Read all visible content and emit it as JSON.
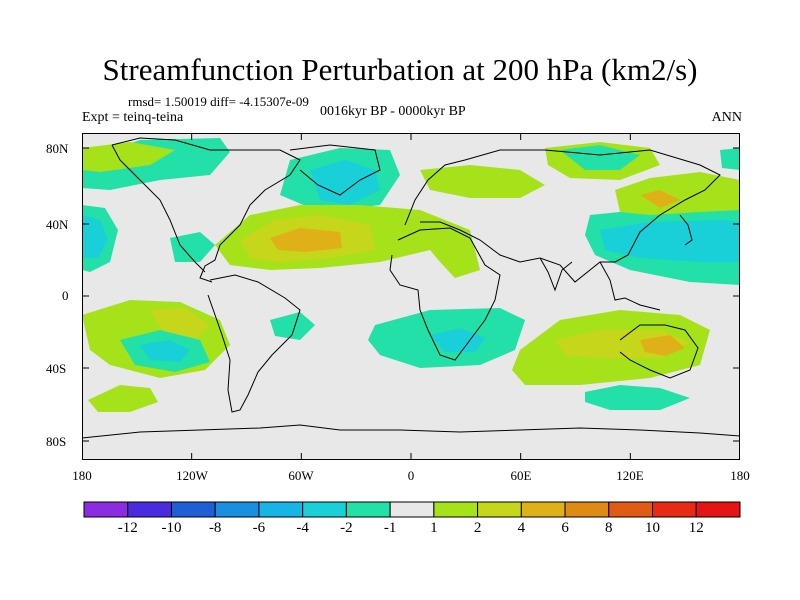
{
  "title": "Streamfunction Perturbation at 200 hPa (km2/s)",
  "stats": "rmsd= 1.50019 diff= -4.15307e-09",
  "experiment": "Expt = teinq-teina",
  "period": "0016kyr BP - 0000kyr BP",
  "season": "ANN",
  "lat_labels": [
    "80N",
    "40N",
    "0",
    "40S",
    "80S"
  ],
  "lon_labels": [
    "180",
    "120W",
    "60W",
    "0",
    "60E",
    "120E",
    "180"
  ],
  "colorbar": {
    "labels": [
      "-12",
      "-10",
      "-8",
      "-6",
      "-4",
      "-2",
      "-1",
      "1",
      "2",
      "4",
      "6",
      "8",
      "10",
      "12"
    ],
    "colors": [
      "#8b2be2",
      "#4a2be0",
      "#1f5fd6",
      "#1a8ee0",
      "#17b4e6",
      "#19cfd8",
      "#22e0a8",
      "#e8e8e8",
      "#a6e21a",
      "#c6d61a",
      "#e0b018",
      "#e08a16",
      "#e05c14",
      "#e82a14",
      "#e61414"
    ]
  },
  "fills": [
    {
      "c": "#22e0a8",
      "pts": [
        [
          82,
          160
        ],
        [
          140,
          140
        ],
        [
          220,
          138
        ],
        [
          230,
          152
        ],
        [
          210,
          175
        ],
        [
          160,
          180
        ],
        [
          110,
          190
        ],
        [
          82,
          188
        ]
      ]
    },
    {
      "c": "#a6e21a",
      "pts": [
        [
          82,
          148
        ],
        [
          130,
          142
        ],
        [
          175,
          150
        ],
        [
          150,
          165
        ],
        [
          100,
          172
        ],
        [
          82,
          170
        ]
      ]
    },
    {
      "c": "#22e0a8",
      "pts": [
        [
          290,
          160
        ],
        [
          340,
          148
        ],
        [
          390,
          150
        ],
        [
          400,
          175
        ],
        [
          380,
          205
        ],
        [
          320,
          212
        ],
        [
          280,
          195
        ]
      ]
    },
    {
      "c": "#19cfd8",
      "pts": [
        [
          310,
          170
        ],
        [
          345,
          160
        ],
        [
          375,
          170
        ],
        [
          380,
          190
        ],
        [
          350,
          205
        ],
        [
          320,
          200
        ]
      ]
    },
    {
      "c": "#22e0a8",
      "pts": [
        [
          82,
          205
        ],
        [
          105,
          208
        ],
        [
          118,
          230
        ],
        [
          110,
          262
        ],
        [
          90,
          272
        ],
        [
          82,
          270
        ]
      ]
    },
    {
      "c": "#19cfd8",
      "pts": [
        [
          82,
          215
        ],
        [
          100,
          220
        ],
        [
          108,
          240
        ],
        [
          98,
          258
        ],
        [
          82,
          258
        ]
      ]
    },
    {
      "c": "#22e0a8",
      "pts": [
        [
          170,
          238
        ],
        [
          200,
          232
        ],
        [
          215,
          245
        ],
        [
          200,
          262
        ],
        [
          175,
          262
        ]
      ]
    },
    {
      "c": "#a6e21a",
      "pts": [
        [
          215,
          245
        ],
        [
          250,
          215
        ],
        [
          300,
          205
        ],
        [
          360,
          205
        ],
        [
          420,
          210
        ],
        [
          470,
          230
        ],
        [
          480,
          270
        ],
        [
          455,
          278
        ],
        [
          440,
          262
        ],
        [
          430,
          250
        ],
        [
          380,
          262
        ],
        [
          320,
          268
        ],
        [
          270,
          270
        ],
        [
          230,
          265
        ]
      ]
    },
    {
      "c": "#c6d61a",
      "pts": [
        [
          240,
          240
        ],
        [
          275,
          220
        ],
        [
          320,
          215
        ],
        [
          370,
          225
        ],
        [
          375,
          250
        ],
        [
          330,
          258
        ],
        [
          280,
          262
        ],
        [
          250,
          258
        ]
      ]
    },
    {
      "c": "#e0b018",
      "pts": [
        [
          270,
          238
        ],
        [
          300,
          228
        ],
        [
          340,
          232
        ],
        [
          342,
          248
        ],
        [
          305,
          252
        ],
        [
          278,
          250
        ]
      ]
    },
    {
      "c": "#a6e21a",
      "pts": [
        [
          420,
          170
        ],
        [
          470,
          165
        ],
        [
          520,
          170
        ],
        [
          545,
          185
        ],
        [
          520,
          198
        ],
        [
          470,
          198
        ],
        [
          430,
          190
        ]
      ]
    },
    {
      "c": "#a6e21a",
      "pts": [
        [
          545,
          148
        ],
        [
          600,
          142
        ],
        [
          650,
          148
        ],
        [
          660,
          165
        ],
        [
          620,
          180
        ],
        [
          570,
          178
        ],
        [
          548,
          165
        ]
      ]
    },
    {
      "c": "#22e0a8",
      "pts": [
        [
          560,
          150
        ],
        [
          600,
          145
        ],
        [
          640,
          155
        ],
        [
          620,
          170
        ],
        [
          585,
          170
        ]
      ]
    },
    {
      "c": "#22e0a8",
      "pts": [
        [
          590,
          215
        ],
        [
          640,
          210
        ],
        [
          700,
          205
        ],
        [
          740,
          205
        ],
        [
          740,
          285
        ],
        [
          690,
          282
        ],
        [
          630,
          270
        ],
        [
          595,
          255
        ],
        [
          585,
          235
        ]
      ]
    },
    {
      "c": "#19cfd8",
      "pts": [
        [
          600,
          230
        ],
        [
          650,
          222
        ],
        [
          720,
          220
        ],
        [
          740,
          222
        ],
        [
          740,
          262
        ],
        [
          700,
          262
        ],
        [
          640,
          258
        ],
        [
          605,
          250
        ]
      ]
    },
    {
      "c": "#a6e21a",
      "pts": [
        [
          615,
          190
        ],
        [
          650,
          178
        ],
        [
          700,
          172
        ],
        [
          740,
          180
        ],
        [
          740,
          210
        ],
        [
          700,
          212
        ],
        [
          650,
          215
        ],
        [
          620,
          212
        ]
      ]
    },
    {
      "c": "#e0b018",
      "pts": [
        [
          640,
          195
        ],
        [
          660,
          190
        ],
        [
          680,
          200
        ],
        [
          660,
          208
        ]
      ]
    },
    {
      "c": "#a6e21a",
      "pts": [
        [
          82,
          315
        ],
        [
          130,
          300
        ],
        [
          180,
          302
        ],
        [
          220,
          320
        ],
        [
          230,
          345
        ],
        [
          205,
          370
        ],
        [
          160,
          378
        ],
        [
          110,
          365
        ],
        [
          90,
          350
        ]
      ]
    },
    {
      "c": "#c6d61a",
      "pts": [
        [
          150,
          310
        ],
        [
          185,
          308
        ],
        [
          210,
          325
        ],
        [
          195,
          340
        ],
        [
          165,
          335
        ]
      ]
    },
    {
      "c": "#22e0a8",
      "pts": [
        [
          120,
          340
        ],
        [
          160,
          330
        ],
        [
          200,
          340
        ],
        [
          210,
          362
        ],
        [
          175,
          372
        ],
        [
          135,
          365
        ]
      ]
    },
    {
      "c": "#19cfd8",
      "pts": [
        [
          140,
          345
        ],
        [
          170,
          340
        ],
        [
          190,
          350
        ],
        [
          180,
          362
        ],
        [
          150,
          360
        ]
      ]
    },
    {
      "c": "#22e0a8",
      "pts": [
        [
          270,
          320
        ],
        [
          300,
          312
        ],
        [
          315,
          325
        ],
        [
          300,
          340
        ],
        [
          275,
          336
        ]
      ]
    },
    {
      "c": "#22e0a8",
      "pts": [
        [
          375,
          325
        ],
        [
          430,
          310
        ],
        [
          500,
          308
        ],
        [
          525,
          320
        ],
        [
          515,
          350
        ],
        [
          480,
          365
        ],
        [
          420,
          368
        ],
        [
          380,
          355
        ],
        [
          368,
          340
        ]
      ]
    },
    {
      "c": "#19cfd8",
      "pts": [
        [
          430,
          335
        ],
        [
          460,
          328
        ],
        [
          485,
          338
        ],
        [
          475,
          352
        ],
        [
          445,
          352
        ]
      ]
    },
    {
      "c": "#a6e21a",
      "pts": [
        [
          520,
          350
        ],
        [
          560,
          320
        ],
        [
          620,
          310
        ],
        [
          680,
          315
        ],
        [
          710,
          330
        ],
        [
          700,
          365
        ],
        [
          650,
          378
        ],
        [
          580,
          385
        ],
        [
          525,
          385
        ],
        [
          512,
          370
        ]
      ]
    },
    {
      "c": "#c6d61a",
      "pts": [
        [
          555,
          340
        ],
        [
          600,
          330
        ],
        [
          660,
          330
        ],
        [
          690,
          342
        ],
        [
          660,
          358
        ],
        [
          600,
          358
        ],
        [
          565,
          355
        ]
      ]
    },
    {
      "c": "#e0b018",
      "pts": [
        [
          640,
          340
        ],
        [
          670,
          335
        ],
        [
          685,
          348
        ],
        [
          665,
          356
        ],
        [
          645,
          352
        ]
      ]
    },
    {
      "c": "#22e0a8",
      "pts": [
        [
          585,
          392
        ],
        [
          620,
          385
        ],
        [
          660,
          388
        ],
        [
          690,
          398
        ],
        [
          660,
          410
        ],
        [
          610,
          410
        ],
        [
          585,
          402
        ]
      ]
    },
    {
      "c": "#a6e21a",
      "pts": [
        [
          88,
          400
        ],
        [
          120,
          385
        ],
        [
          150,
          388
        ],
        [
          158,
          402
        ],
        [
          130,
          412
        ],
        [
          98,
          412
        ]
      ]
    },
    {
      "c": "#22e0a8",
      "pts": [
        [
          720,
          150
        ],
        [
          740,
          148
        ],
        [
          740,
          170
        ],
        [
          722,
          168
        ]
      ]
    }
  ],
  "coasts": [
    {
      "name": "north-america-coast",
      "pts": [
        [
          112,
          145
        ],
        [
          140,
          138
        ],
        [
          175,
          140
        ],
        [
          210,
          150
        ],
        [
          240,
          150
        ],
        [
          280,
          150
        ],
        [
          300,
          160
        ],
        [
          290,
          175
        ],
        [
          265,
          190
        ],
        [
          250,
          205
        ],
        [
          240,
          225
        ],
        [
          220,
          245
        ],
        [
          215,
          260
        ],
        [
          205,
          266
        ],
        [
          200,
          278
        ],
        [
          212,
          282
        ]
      ]
    },
    {
      "name": "north-america-west-coast",
      "pts": [
        [
          112,
          145
        ],
        [
          120,
          160
        ],
        [
          140,
          180
        ],
        [
          160,
          200
        ],
        [
          170,
          220
        ],
        [
          180,
          245
        ],
        [
          195,
          262
        ],
        [
          205,
          272
        ]
      ]
    },
    {
      "name": "greenland-coast",
      "pts": [
        [
          290,
          150
        ],
        [
          330,
          145
        ],
        [
          375,
          150
        ],
        [
          380,
          170
        ],
        [
          360,
          180
        ],
        [
          340,
          195
        ],
        [
          318,
          185
        ],
        [
          300,
          170
        ]
      ]
    },
    {
      "name": "south-america-coast",
      "pts": [
        [
          210,
          280
        ],
        [
          235,
          275
        ],
        [
          258,
          282
        ],
        [
          285,
          298
        ],
        [
          300,
          310
        ],
        [
          292,
          335
        ],
        [
          272,
          355
        ],
        [
          258,
          372
        ],
        [
          248,
          395
        ],
        [
          240,
          410
        ],
        [
          232,
          412
        ],
        [
          228,
          390
        ],
        [
          230,
          360
        ],
        [
          222,
          335
        ],
        [
          214,
          312
        ],
        [
          208,
          295
        ]
      ]
    },
    {
      "name": "africa-coast",
      "pts": [
        [
          398,
          240
        ],
        [
          420,
          230
        ],
        [
          450,
          228
        ],
        [
          470,
          238
        ],
        [
          485,
          265
        ],
        [
          500,
          275
        ],
        [
          495,
          300
        ],
        [
          485,
          320
        ],
        [
          470,
          340
        ],
        [
          455,
          360
        ],
        [
          440,
          355
        ],
        [
          428,
          330
        ],
        [
          420,
          310
        ],
        [
          418,
          290
        ],
        [
          400,
          285
        ],
        [
          390,
          270
        ],
        [
          392,
          255
        ]
      ]
    },
    {
      "name": "europe-asia-coast",
      "pts": [
        [
          405,
          225
        ],
        [
          415,
          200
        ],
        [
          428,
          180
        ],
        [
          445,
          165
        ],
        [
          465,
          160
        ],
        [
          500,
          150
        ],
        [
          545,
          150
        ],
        [
          600,
          155
        ],
        [
          650,
          150
        ],
        [
          700,
          165
        ],
        [
          720,
          175
        ],
        [
          705,
          190
        ],
        [
          685,
          200
        ],
        [
          660,
          215
        ],
        [
          640,
          232
        ],
        [
          628,
          255
        ],
        [
          615,
          262
        ],
        [
          600,
          262
        ],
        [
          575,
          282
        ],
        [
          560,
          265
        ],
        [
          540,
          258
        ],
        [
          520,
          262
        ],
        [
          500,
          255
        ],
        [
          480,
          240
        ],
        [
          460,
          230
        ],
        [
          440,
          222
        ],
        [
          420,
          222
        ]
      ]
    },
    {
      "name": "india-coast",
      "pts": [
        [
          540,
          258
        ],
        [
          548,
          272
        ],
        [
          555,
          290
        ],
        [
          562,
          270
        ],
        [
          572,
          262
        ]
      ]
    },
    {
      "name": "southeast-asia-coast",
      "pts": [
        [
          600,
          262
        ],
        [
          610,
          280
        ],
        [
          615,
          300
        ],
        [
          625,
          298
        ],
        [
          640,
          305
        ],
        [
          660,
          310
        ]
      ]
    },
    {
      "name": "australia-coast",
      "pts": [
        [
          620,
          340
        ],
        [
          640,
          325
        ],
        [
          665,
          325
        ],
        [
          685,
          330
        ],
        [
          698,
          348
        ],
        [
          690,
          370
        ],
        [
          670,
          378
        ],
        [
          650,
          370
        ],
        [
          630,
          360
        ],
        [
          620,
          352
        ]
      ]
    },
    {
      "name": "japan-coast",
      "pts": [
        [
          680,
          215
        ],
        [
          688,
          225
        ],
        [
          692,
          240
        ],
        [
          685,
          245
        ]
      ]
    },
    {
      "name": "antarctica-coast",
      "pts": [
        [
          82,
          438
        ],
        [
          140,
          432
        ],
        [
          200,
          430
        ],
        [
          260,
          428
        ],
        [
          300,
          425
        ],
        [
          340,
          430
        ],
        [
          400,
          430
        ],
        [
          460,
          432
        ],
        [
          520,
          430
        ],
        [
          580,
          428
        ],
        [
          640,
          430
        ],
        [
          700,
          433
        ],
        [
          740,
          436
        ]
      ]
    }
  ]
}
